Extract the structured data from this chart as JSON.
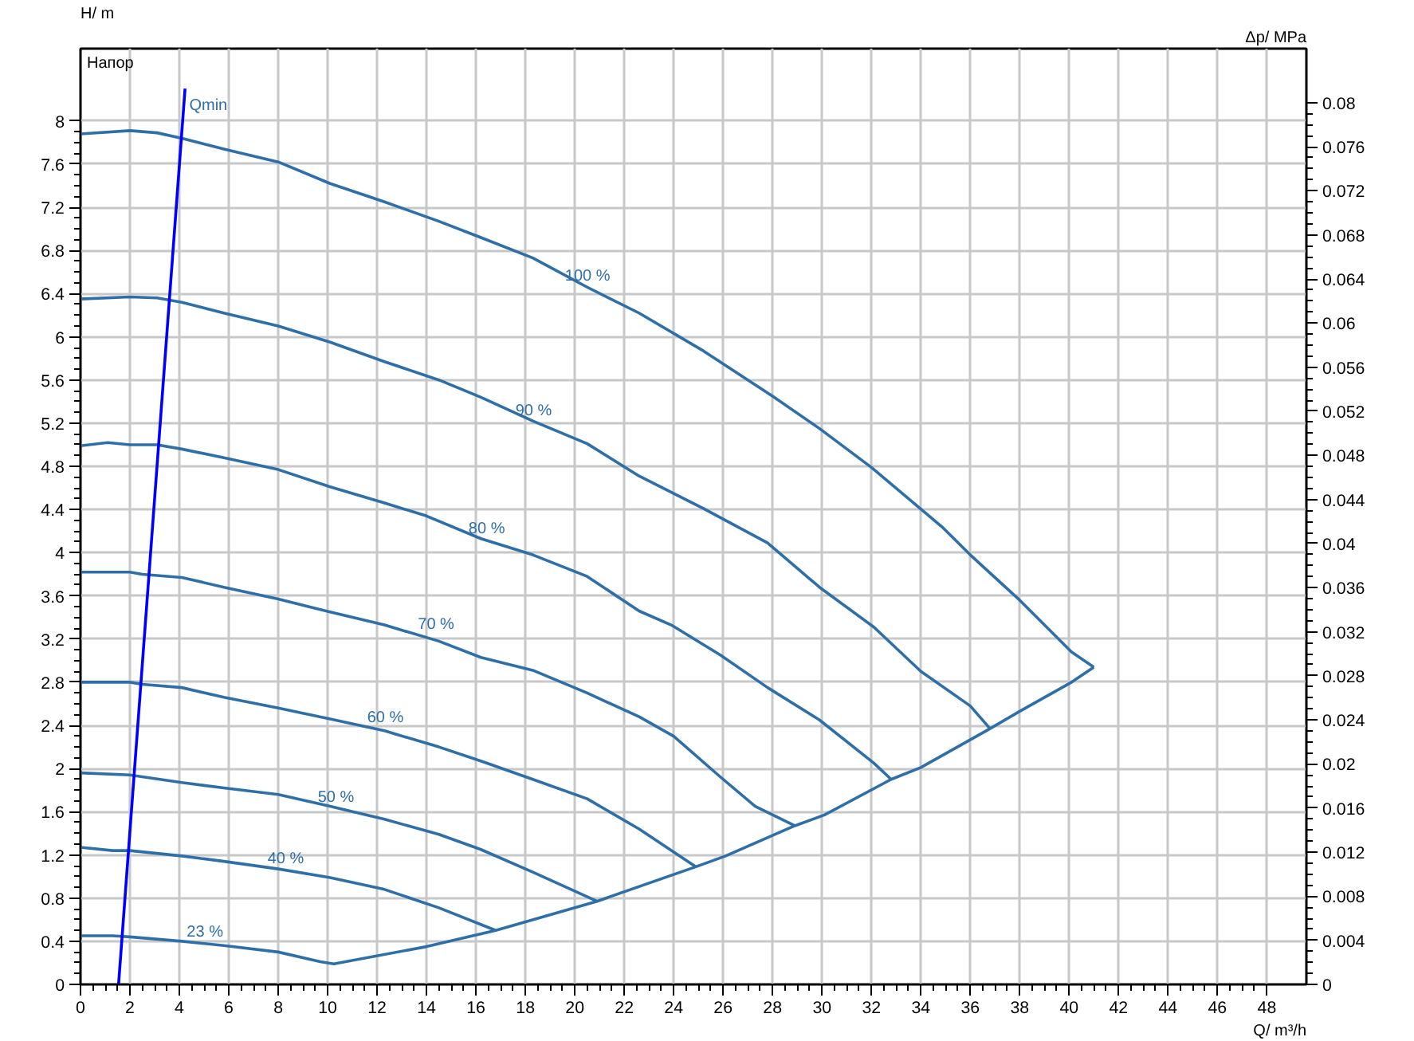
{
  "chart_data": {
    "type": "line",
    "title": "Напор",
    "xlabel": "Q/ m³/h",
    "ylabel": "H/ m",
    "y2label": "Δp/ MPa",
    "xlim": [
      0,
      49.6
    ],
    "xticks": [
      0,
      2,
      4,
      6,
      8,
      10,
      12,
      14,
      16,
      18,
      20,
      22,
      24,
      26,
      28,
      30,
      32,
      34,
      36,
      38,
      40,
      42,
      44,
      46,
      48
    ],
    "ylim": [
      0,
      8.67
    ],
    "yticks": [
      0,
      0.4,
      0.8,
      1.2,
      1.6,
      2,
      2.4,
      2.8,
      3.2,
      3.6,
      4,
      4.4,
      4.8,
      5.2,
      5.6,
      6,
      6.4,
      6.8,
      7.2,
      7.6,
      8
    ],
    "y2lim": [
      0,
      0.0849
    ],
    "y2ticks": [
      0,
      0.004,
      0.008,
      0.012,
      0.016,
      0.02,
      0.024,
      0.028,
      0.032,
      0.036,
      0.04,
      0.044,
      0.048,
      0.052,
      0.056,
      0.06,
      0.064,
      0.068,
      0.072,
      0.076,
      0.08
    ],
    "grid": true,
    "series": [
      {
        "color": "#2f6fa8",
        "x": [
          0,
          2.0,
          3.1,
          4.1,
          5.8,
          8.0,
          10.1,
          12.3,
          14.5,
          16.2,
          18.3,
          20.5,
          22.6,
          25.2,
          28.0,
          29.9,
          32.0,
          34.9,
          36.0,
          38.0,
          40.1,
          41.0
        ],
        "values": [
          7.88,
          7.91,
          7.89,
          7.84,
          7.74,
          7.62,
          7.42,
          7.25,
          7.07,
          6.92,
          6.73,
          6.46,
          6.22,
          5.87,
          5.45,
          5.15,
          4.79,
          4.23,
          3.98,
          3.56,
          3.08,
          2.94
        ]
      },
      {
        "color": "#2f6fa8",
        "x": [
          0,
          2.0,
          3.1,
          4.1,
          5.8,
          8.0,
          10.1,
          12.3,
          14.5,
          16.2,
          18.3,
          20.5,
          22.6,
          25.2,
          27.8,
          29.9,
          32.1,
          34.0,
          36.0,
          36.8
        ],
        "values": [
          6.35,
          6.37,
          6.36,
          6.32,
          6.22,
          6.1,
          5.95,
          5.77,
          5.6,
          5.44,
          5.22,
          5.01,
          4.71,
          4.41,
          4.09,
          3.68,
          3.31,
          2.9,
          2.58,
          2.37
        ]
      },
      {
        "color": "#2f6fa8",
        "x": [
          0,
          1.1,
          2.0,
          3.1,
          4.1,
          5.8,
          8.0,
          10.1,
          12.3,
          14.0,
          16.2,
          18.3,
          20.5,
          22.6,
          23.9,
          25.9,
          27.8,
          29.9,
          32.1,
          32.8
        ],
        "values": [
          4.99,
          5.02,
          5.0,
          5.0,
          4.96,
          4.88,
          4.77,
          4.61,
          4.46,
          4.34,
          4.13,
          3.98,
          3.78,
          3.46,
          3.33,
          3.05,
          2.75,
          2.45,
          2.05,
          1.9
        ]
      },
      {
        "color": "#2f6fa8",
        "x": [
          0,
          2.0,
          2.5,
          4.1,
          5.8,
          8.0,
          10.1,
          12.3,
          14.5,
          16.2,
          18.3,
          20.5,
          22.6,
          24.0,
          25.9,
          27.3,
          28.9
        ],
        "values": [
          3.82,
          3.82,
          3.8,
          3.77,
          3.68,
          3.57,
          3.45,
          3.33,
          3.18,
          3.03,
          2.91,
          2.7,
          2.48,
          2.3,
          1.92,
          1.65,
          1.47
        ]
      },
      {
        "color": "#2f6fa8",
        "x": [
          0,
          2.0,
          2.5,
          4.1,
          5.8,
          8.0,
          10.1,
          12.3,
          14.5,
          16.2,
          18.3,
          20.5,
          22.6,
          24.9
        ],
        "values": [
          2.8,
          2.8,
          2.78,
          2.75,
          2.66,
          2.56,
          2.46,
          2.35,
          2.2,
          2.07,
          1.9,
          1.72,
          1.44,
          1.09
        ]
      },
      {
        "color": "#2f6fa8",
        "x": [
          0,
          2.0,
          4.1,
          5.8,
          8.0,
          10.1,
          12.3,
          14.5,
          16.2,
          18.3,
          20.9
        ],
        "values": [
          1.96,
          1.94,
          1.87,
          1.82,
          1.76,
          1.65,
          1.53,
          1.39,
          1.25,
          1.04,
          0.77
        ]
      },
      {
        "color": "#2f6fa8",
        "x": [
          0,
          1.3,
          2.0,
          4.1,
          5.8,
          8.0,
          10.1,
          12.3,
          14.5,
          16.8
        ],
        "values": [
          1.27,
          1.24,
          1.24,
          1.19,
          1.14,
          1.07,
          0.99,
          0.88,
          0.71,
          0.5
        ]
      },
      {
        "color": "#2f6fa8",
        "x": [
          0,
          1.3,
          2.0,
          4.1,
          5.8,
          8.0,
          9.7,
          10.25,
          14.0,
          16.8,
          20.9,
          24.9,
          26.1,
          28.9,
          30.1,
          32.8,
          34.0,
          36.8,
          38.0,
          40.1,
          41.0
        ],
        "values": [
          0.45,
          0.45,
          0.44,
          0.4,
          0.36,
          0.3,
          0.21,
          0.19,
          0.35,
          0.5,
          0.77,
          1.09,
          1.19,
          1.47,
          1.57,
          1.9,
          2.01,
          2.37,
          2.53,
          2.8,
          2.94
        ]
      },
      {
        "color": "#0000ff",
        "x": [
          1.54,
          4.23
        ],
        "values": [
          0,
          8.3
        ]
      }
    ],
    "annotations": [
      {
        "text": "Qmin",
        "x": 4.4,
        "y": 8.14
      },
      {
        "text": "100 %",
        "x": 19.6,
        "y": 6.56
      },
      {
        "text": "90 %",
        "x": 17.6,
        "y": 5.31
      },
      {
        "text": "80 %",
        "x": 15.7,
        "y": 4.22
      },
      {
        "text": "70 %",
        "x": 13.65,
        "y": 3.33
      },
      {
        "text": "60 %",
        "x": 11.6,
        "y": 2.47
      },
      {
        "text": "50 %",
        "x": 9.6,
        "y": 1.73
      },
      {
        "text": "40 %",
        "x": 7.57,
        "y": 1.16
      },
      {
        "text": "23 %",
        "x": 4.3,
        "y": 0.48
      }
    ]
  }
}
